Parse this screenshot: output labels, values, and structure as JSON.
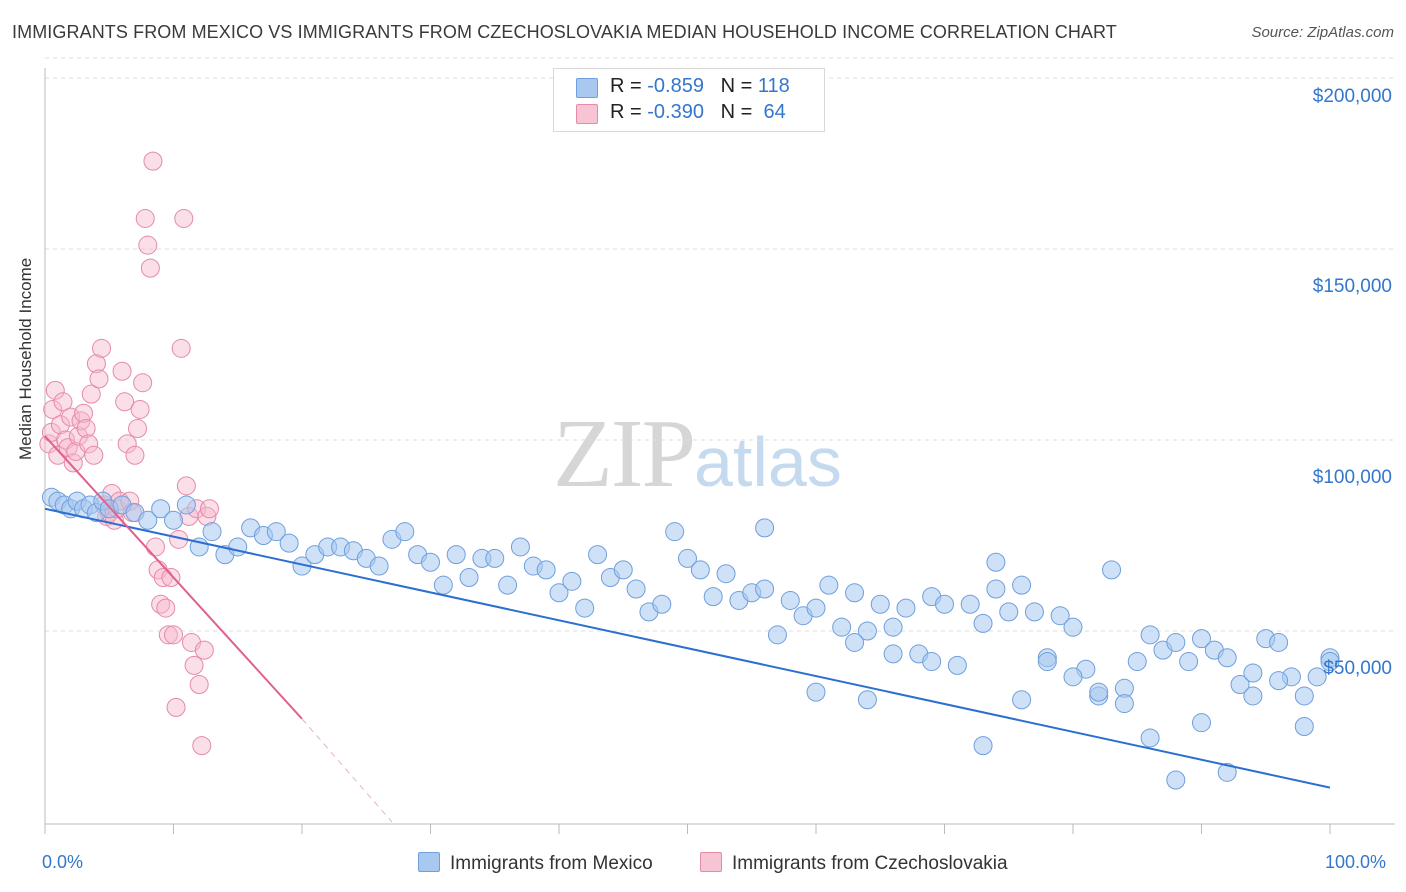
{
  "title": "IMMIGRANTS FROM MEXICO VS IMMIGRANTS FROM CZECHOSLOVAKIA MEDIAN HOUSEHOLD INCOME CORRELATION CHART",
  "source": "Source: ZipAtlas.com",
  "watermark": {
    "zip": "ZIP",
    "atlas": "atlas"
  },
  "colors": {
    "blue": "#3377cc",
    "blue_fill": "#a8c8f0",
    "pink": "#e06090",
    "pink_fill": "#f7b8cc",
    "grid": "#dddddd"
  },
  "legend": {
    "r_label": "R =",
    "n_label": "N =",
    "rows": [
      {
        "r": "-0.859",
        "n": "118"
      },
      {
        "r": "-0.390",
        "n": "64"
      }
    ]
  },
  "chart_data": {
    "type": "scatter",
    "title": "IMMIGRANTS FROM MEXICO VS IMMIGRANTS FROM CZECHOSLOVAKIA MEDIAN HOUSEHOLD INCOME CORRELATION CHART",
    "xlabel": "",
    "ylabel": "Median Household Income",
    "x_tick_labels": [
      "0.0%",
      "100.0%"
    ],
    "y_tick_labels": [
      "$50,000",
      "$100,000",
      "$150,000",
      "$200,000"
    ],
    "y_ticks": [
      50000,
      100000,
      150000,
      200000
    ],
    "xlim": [
      0,
      100
    ],
    "ylim": [
      0,
      205000
    ],
    "grid": true,
    "legend_position": "top-center",
    "series": [
      {
        "name": "Immigrants from Mexico",
        "color": "#3377cc",
        "trend": {
          "x": [
            0,
            100
          ],
          "y": [
            82000,
            9000
          ]
        },
        "points": [
          [
            0.5,
            85000
          ],
          [
            1,
            84000
          ],
          [
            1.5,
            83000
          ],
          [
            2,
            82000
          ],
          [
            2.5,
            84000
          ],
          [
            3,
            82000
          ],
          [
            3.5,
            83000
          ],
          [
            4,
            81000
          ],
          [
            4.5,
            84000
          ],
          [
            5,
            82000
          ],
          [
            6,
            83000
          ],
          [
            7,
            81000
          ],
          [
            8,
            79000
          ],
          [
            9,
            82000
          ],
          [
            10,
            79000
          ],
          [
            11,
            83000
          ],
          [
            12,
            72000
          ],
          [
            13,
            76000
          ],
          [
            14,
            70000
          ],
          [
            15,
            72000
          ],
          [
            16,
            77000
          ],
          [
            17,
            75000
          ],
          [
            18,
            76000
          ],
          [
            19,
            73000
          ],
          [
            20,
            67000
          ],
          [
            21,
            70000
          ],
          [
            22,
            72000
          ],
          [
            23,
            72000
          ],
          [
            24,
            71000
          ],
          [
            25,
            69000
          ],
          [
            26,
            67000
          ],
          [
            27,
            74000
          ],
          [
            28,
            76000
          ],
          [
            29,
            70000
          ],
          [
            30,
            68000
          ],
          [
            31,
            62000
          ],
          [
            32,
            70000
          ],
          [
            33,
            64000
          ],
          [
            34,
            69000
          ],
          [
            35,
            69000
          ],
          [
            36,
            62000
          ],
          [
            37,
            72000
          ],
          [
            38,
            67000
          ],
          [
            39,
            66000
          ],
          [
            40,
            60000
          ],
          [
            41,
            63000
          ],
          [
            42,
            56000
          ],
          [
            43,
            70000
          ],
          [
            44,
            64000
          ],
          [
            45,
            66000
          ],
          [
            46,
            61000
          ],
          [
            47,
            55000
          ],
          [
            48,
            57000
          ],
          [
            49,
            76000
          ],
          [
            50,
            69000
          ],
          [
            51,
            66000
          ],
          [
            52,
            59000
          ],
          [
            53,
            65000
          ],
          [
            54,
            58000
          ],
          [
            55,
            60000
          ],
          [
            56,
            61000
          ],
          [
            57,
            49000
          ],
          [
            58,
            58000
          ],
          [
            59,
            54000
          ],
          [
            60,
            56000
          ],
          [
            61,
            62000
          ],
          [
            62,
            51000
          ],
          [
            63,
            60000
          ],
          [
            64,
            50000
          ],
          [
            65,
            57000
          ],
          [
            66,
            51000
          ],
          [
            67,
            56000
          ],
          [
            68,
            44000
          ],
          [
            69,
            59000
          ],
          [
            70,
            57000
          ],
          [
            71,
            41000
          ],
          [
            72,
            57000
          ],
          [
            73,
            52000
          ],
          [
            74,
            61000
          ],
          [
            75,
            55000
          ],
          [
            76,
            62000
          ],
          [
            77,
            55000
          ],
          [
            78,
            43000
          ],
          [
            79,
            54000
          ],
          [
            80,
            51000
          ],
          [
            81,
            40000
          ],
          [
            82,
            33000
          ],
          [
            83,
            66000
          ],
          [
            84,
            35000
          ],
          [
            85,
            42000
          ],
          [
            86,
            49000
          ],
          [
            87,
            45000
          ],
          [
            88,
            47000
          ],
          [
            89,
            42000
          ],
          [
            90,
            48000
          ],
          [
            91,
            45000
          ],
          [
            92,
            43000
          ],
          [
            93,
            36000
          ],
          [
            94,
            33000
          ],
          [
            95,
            48000
          ],
          [
            96,
            47000
          ],
          [
            97,
            38000
          ],
          [
            98,
            33000
          ],
          [
            99,
            38000
          ],
          [
            100,
            43000
          ],
          [
            56,
            77000
          ],
          [
            60,
            34000
          ],
          [
            64,
            32000
          ],
          [
            66,
            44000
          ],
          [
            73,
            20000
          ],
          [
            74,
            68000
          ],
          [
            76,
            32000
          ],
          [
            78,
            42000
          ],
          [
            80,
            38000
          ],
          [
            82,
            34000
          ],
          [
            84,
            31000
          ],
          [
            86,
            22000
          ],
          [
            88,
            11000
          ],
          [
            90,
            26000
          ],
          [
            92,
            13000
          ],
          [
            94,
            39000
          ],
          [
            96,
            37000
          ],
          [
            98,
            25000
          ],
          [
            100,
            42000
          ],
          [
            63,
            47000
          ],
          [
            69,
            42000
          ]
        ]
      },
      {
        "name": "Immigrants from Czechoslovakia",
        "color": "#e06090",
        "trend": {
          "x": [
            0,
            20
          ],
          "y": [
            101000,
            27000
          ]
        },
        "trend_dashed_extension": {
          "x": [
            20,
            27
          ],
          "y": [
            27000,
            0
          ]
        },
        "points": [
          [
            0.3,
            99000
          ],
          [
            0.5,
            102000
          ],
          [
            0.6,
            108000
          ],
          [
            0.8,
            113000
          ],
          [
            1,
            96000
          ],
          [
            1.2,
            104000
          ],
          [
            1.4,
            110000
          ],
          [
            1.6,
            100000
          ],
          [
            1.8,
            98000
          ],
          [
            2,
            106000
          ],
          [
            2.2,
            94000
          ],
          [
            2.4,
            97000
          ],
          [
            2.6,
            101000
          ],
          [
            2.8,
            105000
          ],
          [
            3,
            107000
          ],
          [
            3.2,
            103000
          ],
          [
            3.4,
            99000
          ],
          [
            3.6,
            112000
          ],
          [
            3.8,
            96000
          ],
          [
            4,
            120000
          ],
          [
            4.2,
            116000
          ],
          [
            4.4,
            124000
          ],
          [
            4.6,
            83000
          ],
          [
            4.8,
            80000
          ],
          [
            5,
            81000
          ],
          [
            5.2,
            86000
          ],
          [
            5.4,
            79000
          ],
          [
            5.6,
            82000
          ],
          [
            5.8,
            84000
          ],
          [
            6,
            118000
          ],
          [
            6.2,
            110000
          ],
          [
            6.4,
            99000
          ],
          [
            6.6,
            84000
          ],
          [
            6.8,
            81000
          ],
          [
            7,
            96000
          ],
          [
            7.2,
            103000
          ],
          [
            7.4,
            108000
          ],
          [
            7.6,
            115000
          ],
          [
            7.8,
            158000
          ],
          [
            8,
            151000
          ],
          [
            8.2,
            145000
          ],
          [
            8.4,
            173000
          ],
          [
            8.6,
            72000
          ],
          [
            8.8,
            66000
          ],
          [
            9,
            57000
          ],
          [
            9.2,
            64000
          ],
          [
            9.4,
            56000
          ],
          [
            9.6,
            49000
          ],
          [
            9.8,
            64000
          ],
          [
            10,
            49000
          ],
          [
            10.2,
            30000
          ],
          [
            10.4,
            74000
          ],
          [
            10.6,
            124000
          ],
          [
            10.8,
            158000
          ],
          [
            11,
            88000
          ],
          [
            11.2,
            80000
          ],
          [
            11.4,
            47000
          ],
          [
            11.6,
            41000
          ],
          [
            11.8,
            82000
          ],
          [
            12,
            36000
          ],
          [
            12.2,
            20000
          ],
          [
            12.4,
            45000
          ],
          [
            12.6,
            80000
          ],
          [
            12.8,
            82000
          ]
        ]
      }
    ]
  },
  "bottom_legend": [
    {
      "label": "Immigrants from Mexico"
    },
    {
      "label": "Immigrants from Czechoslovakia"
    }
  ]
}
